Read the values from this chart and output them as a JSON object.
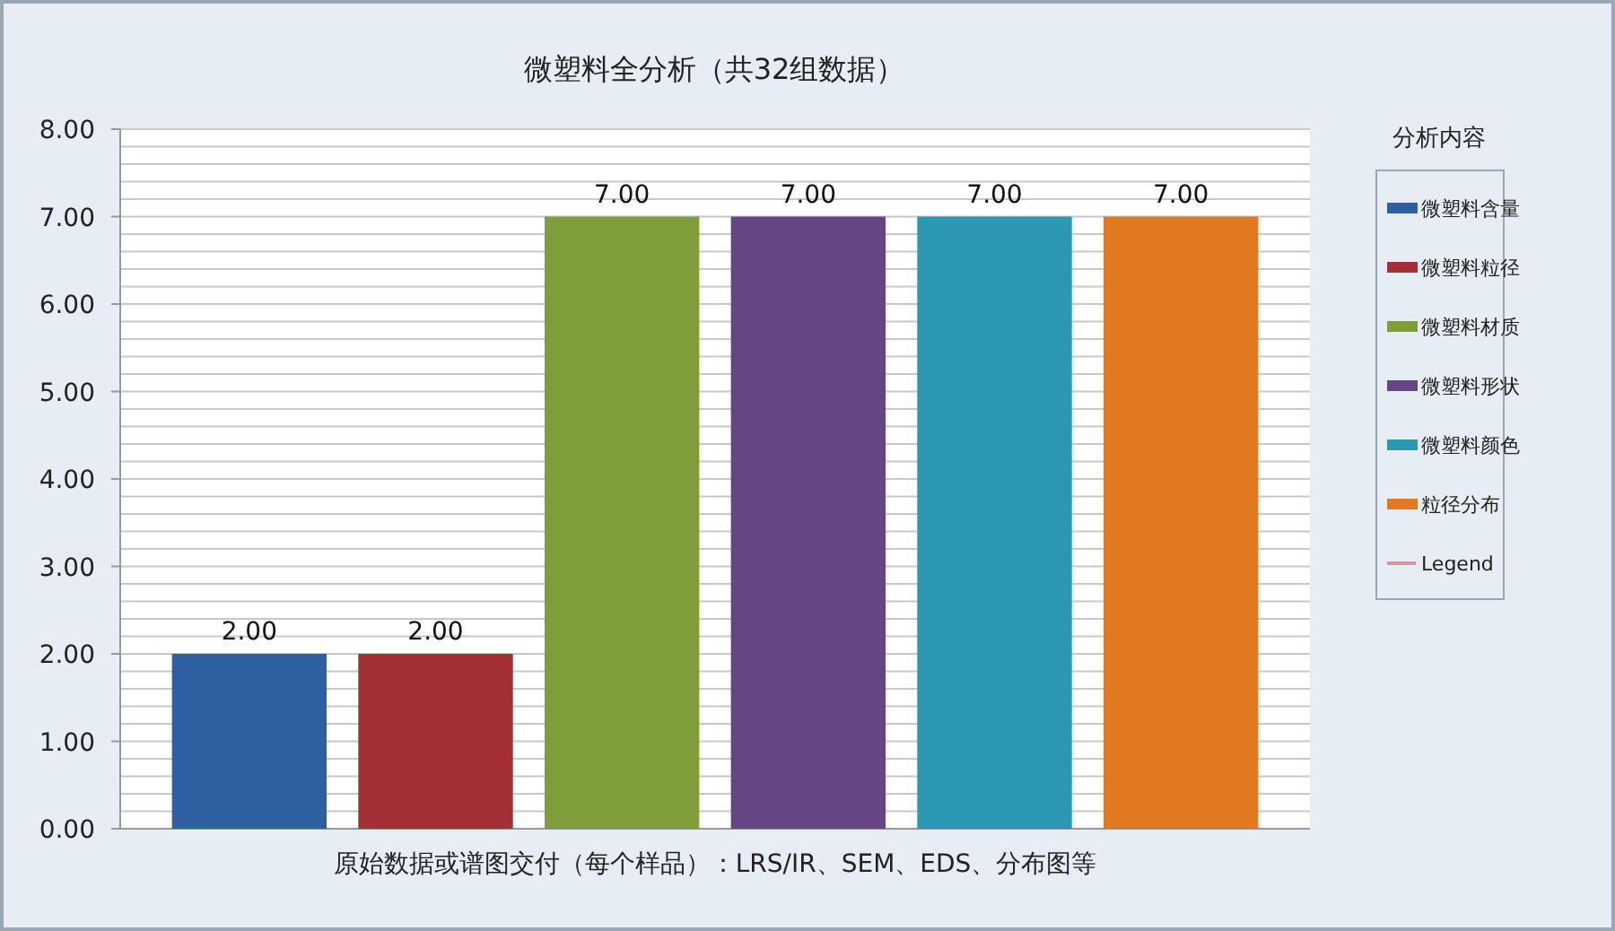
{
  "chart_data": {
    "type": "bar",
    "title": "微塑料全分析（共32组数据）",
    "legend_title": "分析内容",
    "legend": "right",
    "grid": "y",
    "categories": [
      "原始数据或谱图交付（每个样品）：LRS/IR、SEM、EDS、分布图等"
    ],
    "ylim": [
      0,
      8
    ],
    "yticks": [
      {
        "value": 0,
        "label": "0.00"
      },
      {
        "value": 0.2,
        "label": null
      },
      {
        "value": 0.4,
        "label": null
      },
      {
        "value": 0.6,
        "label": null
      },
      {
        "value": 0.8,
        "label": null
      },
      {
        "value": 1,
        "label": "1.00"
      },
      {
        "value": 1.2,
        "label": null
      },
      {
        "value": 1.4,
        "label": null
      },
      {
        "value": 1.6,
        "label": null
      },
      {
        "value": 1.8,
        "label": null
      },
      {
        "value": 2,
        "label": "2.00"
      },
      {
        "value": 2.2,
        "label": null
      },
      {
        "value": 2.4,
        "label": null
      },
      {
        "value": 2.6,
        "label": null
      },
      {
        "value": 2.8,
        "label": null
      },
      {
        "value": 3,
        "label": "3.00"
      },
      {
        "value": 3.2,
        "label": null
      },
      {
        "value": 3.4,
        "label": null
      },
      {
        "value": 3.6,
        "label": null
      },
      {
        "value": 3.8,
        "label": null
      },
      {
        "value": 4,
        "label": "4.00"
      },
      {
        "value": 4.2,
        "label": null
      },
      {
        "value": 4.4,
        "label": null
      },
      {
        "value": 4.6,
        "label": null
      },
      {
        "value": 4.8,
        "label": null
      },
      {
        "value": 5,
        "label": "5.00"
      },
      {
        "value": 5.2,
        "label": null
      },
      {
        "value": 5.4,
        "label": null
      },
      {
        "value": 5.6,
        "label": null
      },
      {
        "value": 5.8,
        "label": null
      },
      {
        "value": 6,
        "label": "6.00"
      },
      {
        "value": 6.2,
        "label": null
      },
      {
        "value": 6.4,
        "label": null
      },
      {
        "value": 6.6,
        "label": null
      },
      {
        "value": 6.8,
        "label": null
      },
      {
        "value": 7,
        "label": "7.00"
      },
      {
        "value": 7.2,
        "label": null
      },
      {
        "value": 7.4,
        "label": null
      },
      {
        "value": 7.6,
        "label": null
      },
      {
        "value": 7.8,
        "label": null
      },
      {
        "value": 8,
        "label": "8.00"
      }
    ],
    "series": [
      {
        "name": "微塑料含量",
        "color": "#2e5f9e",
        "values": [
          2
        ],
        "value_labels": [
          "2.00"
        ]
      },
      {
        "name": "微塑料粒径",
        "color": "#a33034",
        "values": [
          2
        ],
        "value_labels": [
          "2.00"
        ]
      },
      {
        "name": "微塑料材质",
        "color": "#7e9e3a",
        "values": [
          7
        ],
        "value_labels": [
          "7.00"
        ]
      },
      {
        "name": "微塑料形状",
        "color": "#654685",
        "values": [
          7
        ],
        "value_labels": [
          "7.00"
        ]
      },
      {
        "name": "微塑料颜色",
        "color": "#2a97b3",
        "values": [
          7
        ],
        "value_labels": [
          "7.00"
        ]
      },
      {
        "name": "粒径分布",
        "color": "#e0791f",
        "values": [
          7
        ],
        "value_labels": [
          "7.00"
        ]
      },
      {
        "name": "Legend",
        "type": "line",
        "color": "#d9959a",
        "values": [
          null
        ]
      }
    ]
  }
}
